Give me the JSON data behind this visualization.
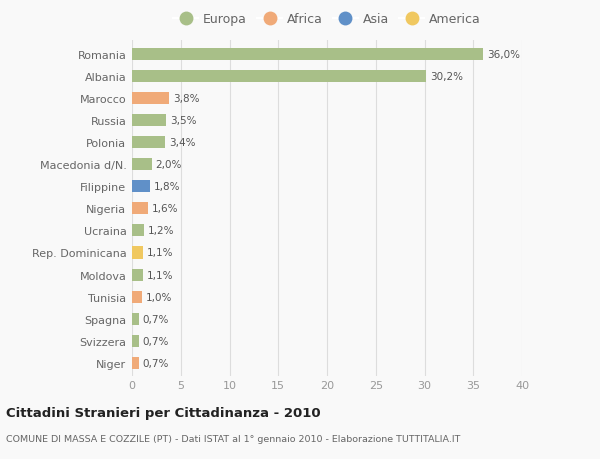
{
  "countries": [
    "Romania",
    "Albania",
    "Marocco",
    "Russia",
    "Polonia",
    "Macedonia d/N.",
    "Filippine",
    "Nigeria",
    "Ucraina",
    "Rep. Dominicana",
    "Moldova",
    "Tunisia",
    "Spagna",
    "Svizzera",
    "Niger"
  ],
  "values": [
    36.0,
    30.2,
    3.8,
    3.5,
    3.4,
    2.0,
    1.8,
    1.6,
    1.2,
    1.1,
    1.1,
    1.0,
    0.7,
    0.7,
    0.7
  ],
  "labels": [
    "36,0%",
    "30,2%",
    "3,8%",
    "3,5%",
    "3,4%",
    "2,0%",
    "1,8%",
    "1,6%",
    "1,2%",
    "1,1%",
    "1,1%",
    "1,0%",
    "0,7%",
    "0,7%",
    "0,7%"
  ],
  "continents": [
    "Europa",
    "Europa",
    "Africa",
    "Europa",
    "Europa",
    "Europa",
    "Asia",
    "Africa",
    "Europa",
    "America",
    "Europa",
    "Africa",
    "Europa",
    "Europa",
    "Africa"
  ],
  "continent_colors": {
    "Europa": "#a8bf88",
    "Africa": "#f0aa78",
    "Asia": "#6090c8",
    "America": "#f0c860"
  },
  "legend_order": [
    "Europa",
    "Africa",
    "Asia",
    "America"
  ],
  "xlim": [
    0,
    40
  ],
  "xticks": [
    0,
    5,
    10,
    15,
    20,
    25,
    30,
    35,
    40
  ],
  "title": "Cittadini Stranieri per Cittadinanza - 2010",
  "subtitle": "COMUNE DI MASSA E COZZILE (PT) - Dati ISTAT al 1° gennaio 2010 - Elaborazione TUTTITALIA.IT",
  "background_color": "#f9f9f9",
  "grid_color": "#dddddd",
  "bar_height": 0.55
}
